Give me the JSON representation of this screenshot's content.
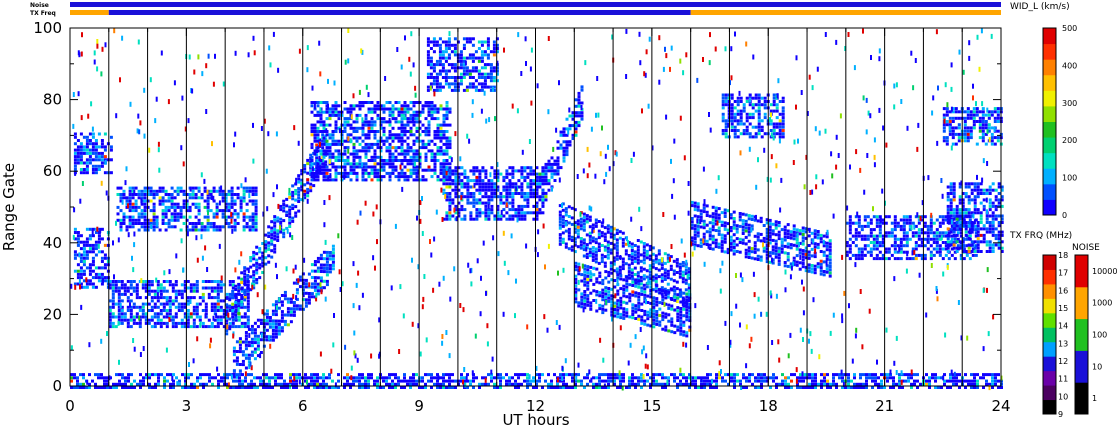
{
  "chart_data": {
    "type": "heatmap",
    "xlabel": "UT hours",
    "ylabel": "Range Gate",
    "xlim": [
      0,
      24
    ],
    "ylim": [
      0,
      100
    ],
    "x_ticks": [
      0,
      3,
      6,
      9,
      12,
      15,
      18,
      21,
      24
    ],
    "x_tick_labels": [
      "0",
      "3",
      "6",
      "9",
      "12",
      "15",
      "18",
      "21",
      "24"
    ],
    "y_ticks": [
      0,
      20,
      40,
      60,
      80,
      100
    ],
    "y_tick_labels": [
      "0",
      "20",
      "40",
      "60",
      "80",
      "100"
    ],
    "scan_separator_hours": [
      1,
      2,
      3,
      4,
      5,
      6,
      7,
      8,
      9,
      10,
      11,
      12,
      13,
      14,
      15,
      16,
      17,
      18,
      19,
      20,
      21,
      22,
      23
    ],
    "status_bars": {
      "noise_label": "Noise",
      "txfreq_label": "TX Freq",
      "noise_color": "#1a10d8",
      "txfreq_segments": [
        {
          "from": 0,
          "to": 1,
          "color": "#ffa500"
        },
        {
          "from": 1,
          "to": 16,
          "color": "#1a10d8"
        },
        {
          "from": 16,
          "to": 24,
          "color": "#ffa500"
        }
      ]
    },
    "colorbars": {
      "width": {
        "title": "WID_L (km/s)",
        "ticks": [
          "500",
          "400",
          "300",
          "200",
          "100",
          "0"
        ],
        "tick_values": [
          500,
          400,
          300,
          200,
          100,
          0
        ],
        "range": [
          0,
          500
        ],
        "colors": [
          "#1000ff",
          "#0050ff",
          "#00b0ff",
          "#00e0c0",
          "#00d070",
          "#20c020",
          "#90e000",
          "#f0f000",
          "#ffc000",
          "#ff8000",
          "#ff3000",
          "#e00000"
        ]
      },
      "txfreq": {
        "title": "TX FRQ (MHz)",
        "ticks": [
          "18",
          "17",
          "16",
          "15",
          "14",
          "13",
          "12",
          "11",
          "10",
          "9"
        ],
        "colors": [
          "#000000",
          "#4b0060",
          "#6a00a8",
          "#1a10d8",
          "#00a0ff",
          "#00c060",
          "#60e000",
          "#f0e000",
          "#ff9000",
          "#ff3000",
          "#d00000"
        ]
      },
      "noise": {
        "title": "NOISE",
        "ticks": [
          "10000",
          "1000",
          "100",
          "10",
          "1"
        ],
        "colors": [
          "#000000",
          "#1a10d8",
          "#20c020",
          "#ffa500",
          "#e00000"
        ]
      }
    },
    "echo_bands": [
      {
        "t0": 0.1,
        "t1": 1.0,
        "g0": 28,
        "g1": 45
      },
      {
        "t0": 0.1,
        "t1": 1.1,
        "g0": 60,
        "g1": 71
      },
      {
        "t0": 1.0,
        "t1": 4.6,
        "g0": 17,
        "g1": 30
      },
      {
        "t0": 1.2,
        "t1": 4.8,
        "g0": 44,
        "g1": 56
      },
      {
        "t0": 4.0,
        "t1": 6.6,
        "g0": 20,
        "g1": 68,
        "slope": true
      },
      {
        "t0": 4.2,
        "t1": 6.8,
        "g0": 7,
        "g1": 36,
        "slope": true
      },
      {
        "t0": 6.2,
        "t1": 9.8,
        "g0": 58,
        "g1": 80
      },
      {
        "t0": 9.6,
        "t1": 12.2,
        "g0": 47,
        "g1": 62
      },
      {
        "t0": 9.2,
        "t1": 11.0,
        "g0": 83,
        "g1": 98
      },
      {
        "t0": 12.0,
        "t1": 13.2,
        "g0": 52,
        "g1": 80,
        "slope": true
      },
      {
        "t0": 12.6,
        "t1": 16.0,
        "g0": 22,
        "g1": 52,
        "slope_down": true
      },
      {
        "t0": 13.0,
        "t1": 16.0,
        "g0": 17,
        "g1": 32,
        "slope_down": true
      },
      {
        "t0": 16.0,
        "t1": 19.6,
        "g0": 34,
        "g1": 49,
        "slope_down": true
      },
      {
        "t0": 20.0,
        "t1": 23.4,
        "g0": 36,
        "g1": 48
      },
      {
        "t0": 22.6,
        "t1": 24.0,
        "g0": 38,
        "g1": 57
      },
      {
        "t0": 22.5,
        "t1": 24.0,
        "g0": 68,
        "g1": 78
      },
      {
        "t0": 16.8,
        "t1": 18.4,
        "g0": 70,
        "g1": 82
      },
      {
        "t0": 0.0,
        "t1": 24.0,
        "g0": 0,
        "g1": 4
      }
    ]
  }
}
